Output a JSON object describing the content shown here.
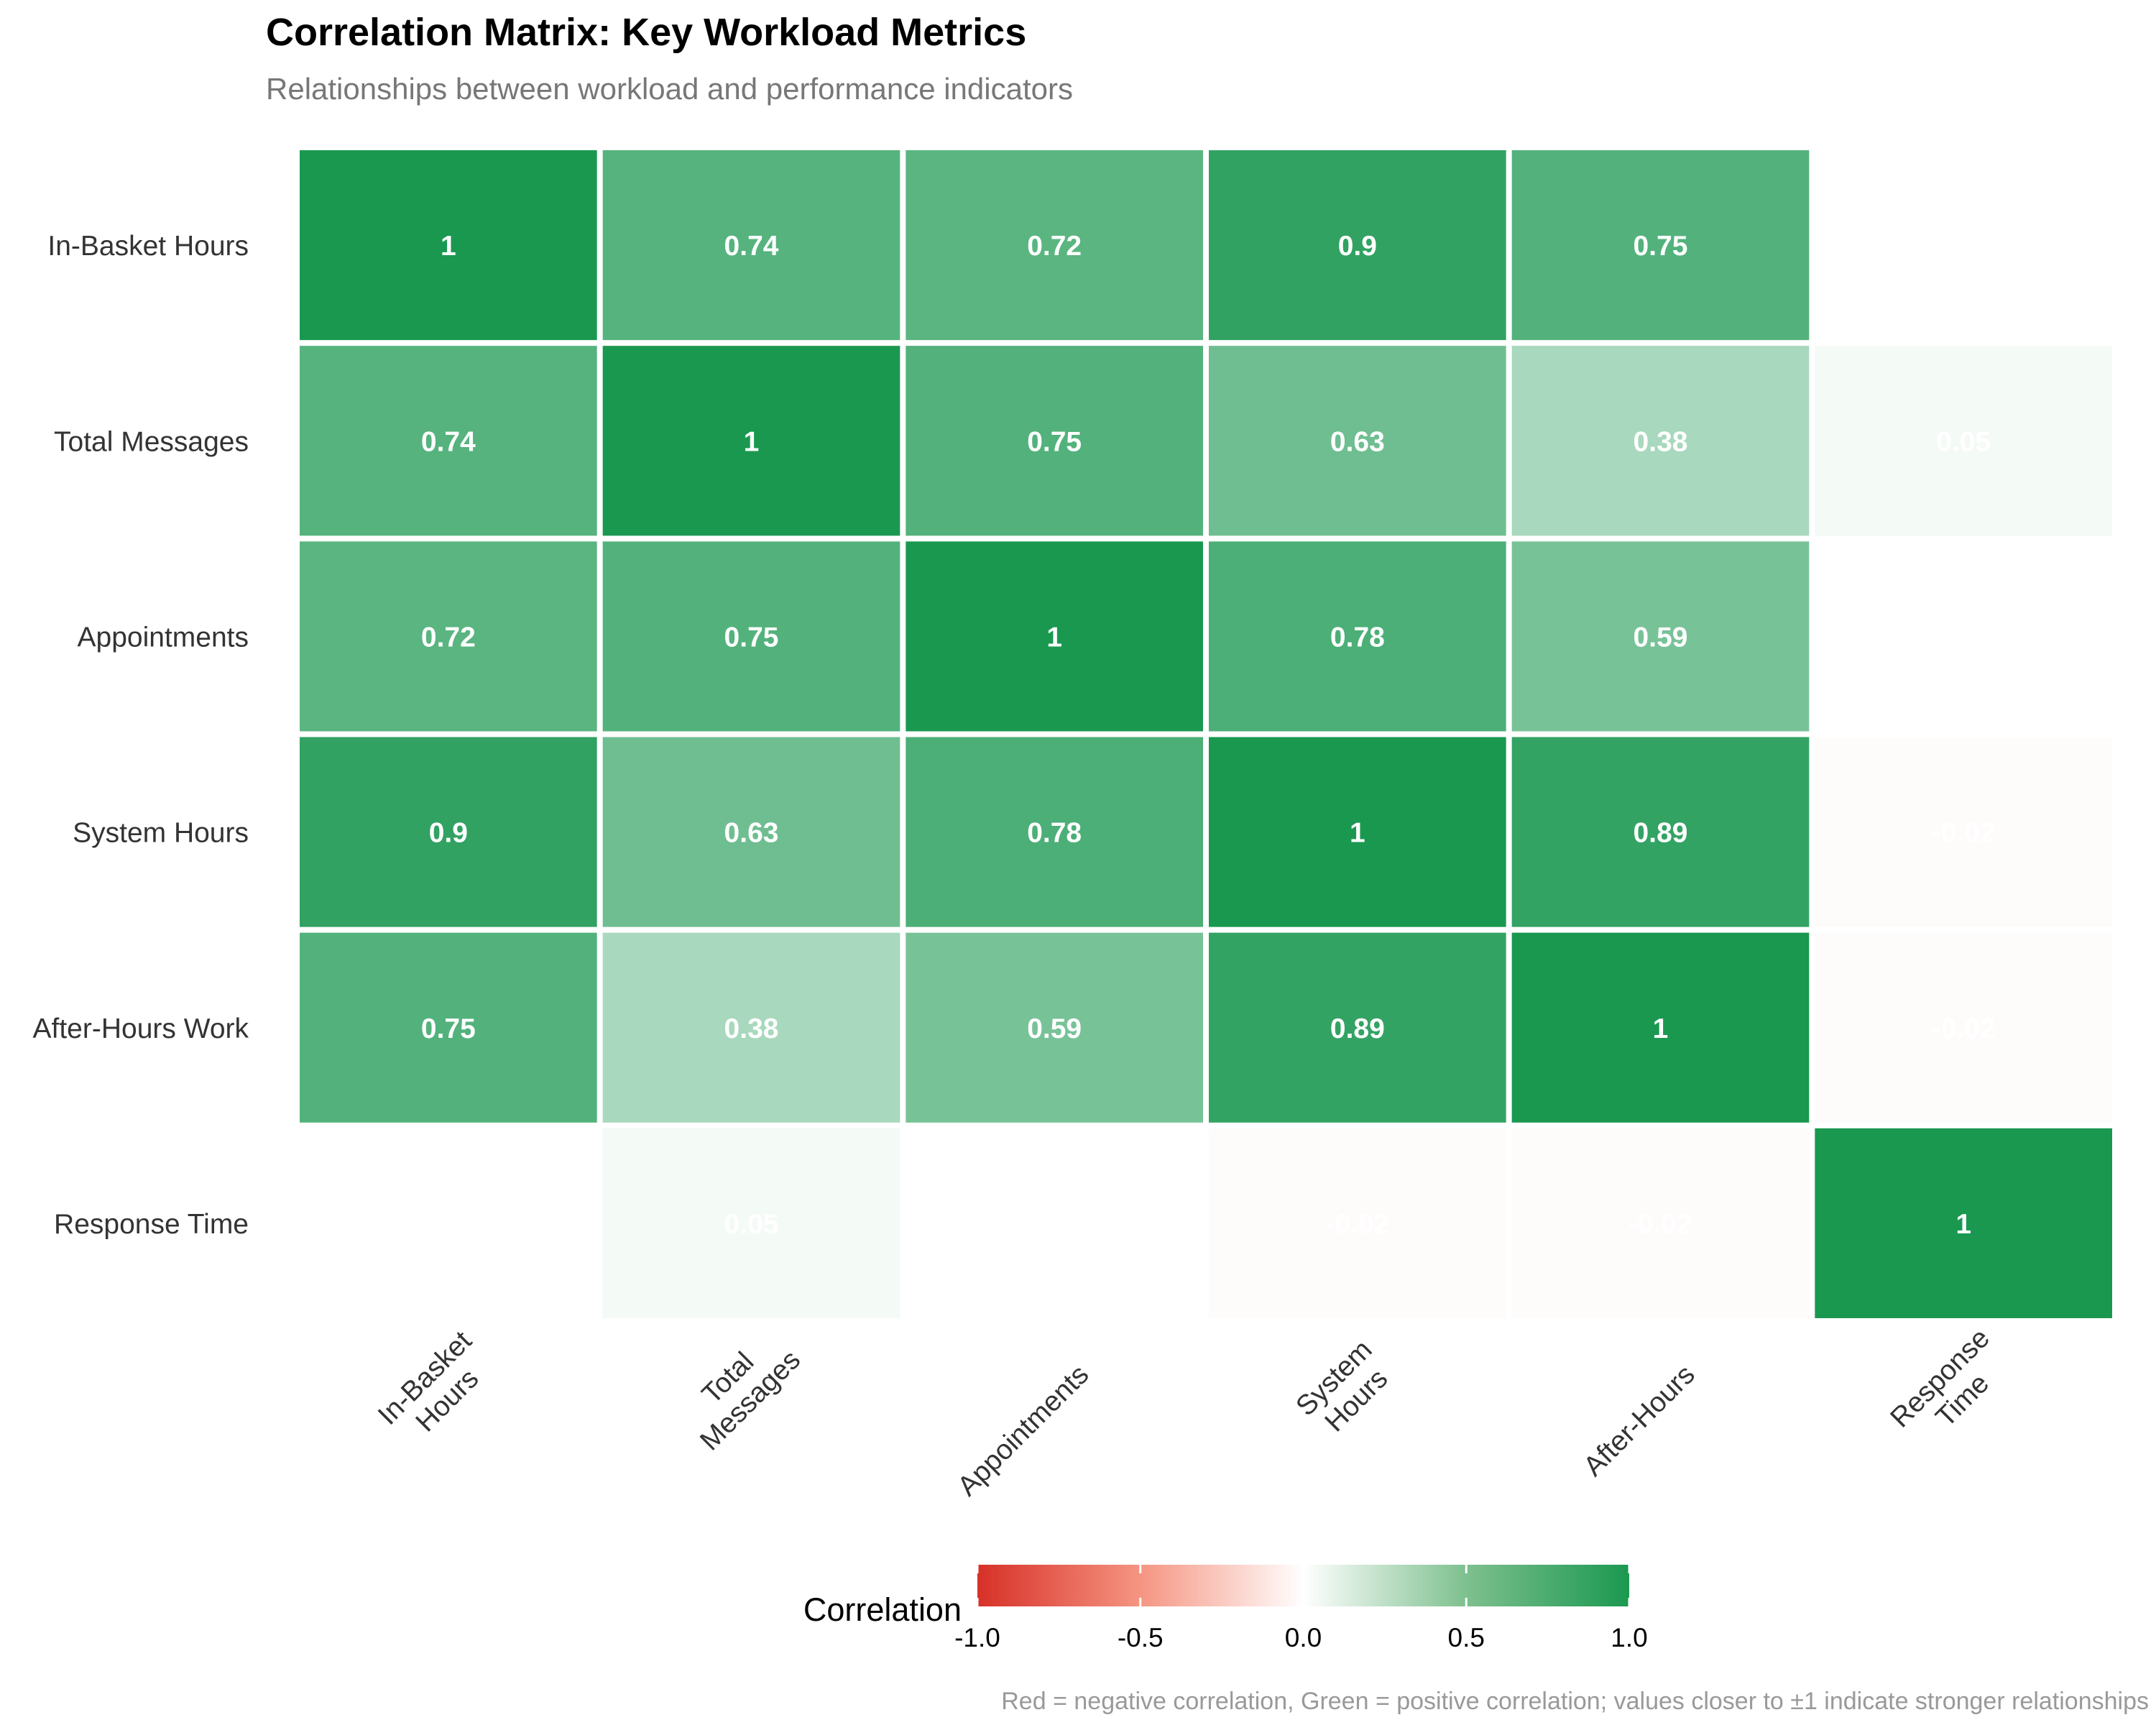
{
  "chart_data": {
    "type": "heatmap",
    "title": "Correlation Matrix: Key Workload Metrics",
    "subtitle": "Relationships between workload and performance indicators",
    "row_labels": [
      "In-Basket Hours",
      "Total Messages",
      "Appointments",
      "System Hours",
      "After-Hours Work",
      "Response Time"
    ],
    "column_labels": [
      [
        "In-Basket",
        "Hours"
      ],
      [
        "Total",
        "Messages"
      ],
      [
        "Appointments"
      ],
      [
        "System",
        "Hours"
      ],
      [
        "After-Hours"
      ],
      [
        "Response",
        "Time"
      ]
    ],
    "values": [
      [
        1,
        0.74,
        0.72,
        0.9,
        0.75,
        0.0
      ],
      [
        0.74,
        1,
        0.75,
        0.63,
        0.38,
        0.05
      ],
      [
        0.72,
        0.75,
        1,
        0.78,
        0.59,
        0.0
      ],
      [
        0.9,
        0.63,
        0.78,
        1,
        0.89,
        -0.02
      ],
      [
        0.75,
        0.38,
        0.59,
        0.89,
        1,
        -0.02
      ],
      [
        0.0,
        0.05,
        0.0,
        -0.02,
        -0.02,
        1
      ]
    ],
    "cell_labels": [
      [
        "1",
        "0.74",
        "0.72",
        "0.9",
        "0.75",
        ""
      ],
      [
        "0.74",
        "1",
        "0.75",
        "0.63",
        "0.38",
        "0.05"
      ],
      [
        "0.72",
        "0.75",
        "1",
        "0.78",
        "0.59",
        ""
      ],
      [
        "0.9",
        "0.63",
        "0.78",
        "1",
        "0.89",
        "-0.02"
      ],
      [
        "0.75",
        "0.38",
        "0.59",
        "0.89",
        "1",
        "-0.02"
      ],
      [
        "",
        "0.05",
        "",
        "-0.02",
        "-0.02",
        "1"
      ]
    ],
    "color_scale": {
      "low": "#d73027",
      "mid": "#ffffff",
      "high": "#1a9850",
      "limits": [
        -1,
        1
      ]
    },
    "legend": {
      "title": "Correlation",
      "ticks": [
        -1,
        -0.5,
        0,
        0.5,
        1
      ],
      "tick_labels": [
        "-1.0",
        "-0.5",
        "0.0",
        "0.5",
        "1.0"
      ],
      "position": "bottom"
    },
    "caption": "Red = negative correlation, Green = positive correlation; values closer to ±1 indicate stronger relationships",
    "grid": false
  }
}
